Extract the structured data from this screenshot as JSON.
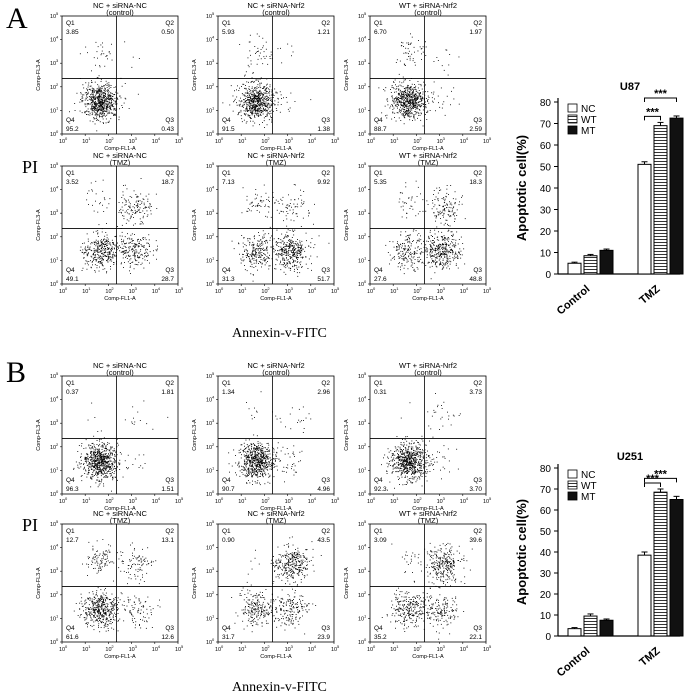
{
  "figure": {
    "panels": [
      {
        "letter": "A",
        "pi_label": "PI",
        "xcaption": "Annexin-v-FITC",
        "flow_plots": [
          {
            "title": "NC + siRNA-NC",
            "subtitle": "(control)",
            "q1": "3.85",
            "q2": "0.50",
            "q3": "0.43",
            "q4": "95.2",
            "pattern": "ctrl"
          },
          {
            "title": "NC + siRNA-Nrf2",
            "subtitle": "(control)",
            "q1": "5.93",
            "q2": "1.21",
            "q3": "1.38",
            "q4": "91.5",
            "pattern": "ctrl"
          },
          {
            "title": "WT + siRNA-Nrf2",
            "subtitle": "(control)",
            "q1": "6.70",
            "q2": "1.97",
            "q3": "2.59",
            "q4": "88.7",
            "pattern": "ctrl"
          },
          {
            "title": "NC + siRNA-NC",
            "subtitle": "(TMZ)",
            "q1": "3.52",
            "q2": "18.7",
            "q3": "28.7",
            "q4": "49.1",
            "pattern": "tmz"
          },
          {
            "title": "NC + siRNA-Nrf2",
            "subtitle": "(TMZ)",
            "q1": "7.13",
            "q2": "9.92",
            "q3": "51.7",
            "q4": "31.3",
            "pattern": "tmz"
          },
          {
            "title": "WT + siRNA-Nrf2",
            "subtitle": "(TMZ)",
            "q1": "5.35",
            "q2": "18.3",
            "q3": "48.8",
            "q4": "27.6",
            "pattern": "tmz"
          }
        ]
      },
      {
        "letter": "B",
        "pi_label": "PI",
        "xcaption": "Annexin-v-FITC",
        "flow_plots": [
          {
            "title": "NC + siRNA-NC",
            "subtitle": "(control)",
            "q1": "0.37",
            "q2": "1.81",
            "q3": "1.51",
            "q4": "96.3",
            "pattern": "ctrl"
          },
          {
            "title": "NC + siRNA-Nrf2",
            "subtitle": "(control)",
            "q1": "1.34",
            "q2": "2.96",
            "q3": "4.96",
            "q4": "90.7",
            "pattern": "ctrl"
          },
          {
            "title": "WT + siRNA-Nrf2",
            "subtitle": "(control)",
            "q1": "0.31",
            "q2": "3.73",
            "q3": "3.70",
            "q4": "92.3",
            "pattern": "ctrl"
          },
          {
            "title": "NC + siRNA-NC",
            "subtitle": "(TMZ)",
            "q1": "12.7",
            "q2": "13.1",
            "q3": "12.6",
            "q4": "61.6",
            "pattern": "tmz2"
          },
          {
            "title": "NC + siRNA-Nrf2",
            "subtitle": "(TMZ)",
            "q1": "0.90",
            "q2": "43.5",
            "q3": "23.9",
            "q4": "31.7",
            "pattern": "tmz2"
          },
          {
            "title": "WT + siRNA-Nrf2",
            "subtitle": "(TMZ)",
            "q1": "3.09",
            "q2": "39.6",
            "q3": "22.1",
            "q4": "35.2",
            "pattern": "tmz2"
          }
        ]
      }
    ],
    "flow_axis": {
      "ylabel": "Comp-FL3-A",
      "xlabel": "Comp-FL1-A",
      "ticks": [
        "10",
        "10",
        "10",
        "10",
        "10",
        "10"
      ],
      "tick_exps": [
        "0",
        "1",
        "2",
        "3",
        "4",
        "5"
      ]
    }
  },
  "chart_data": [
    {
      "type": "bar",
      "title": "U87",
      "ylabel": "Apoptotic cell(%)",
      "xlabel": "",
      "categories": [
        "Control",
        "TMZ"
      ],
      "ylim": [
        0,
        80
      ],
      "yticks": [
        "0",
        "10",
        "20",
        "30",
        "40",
        "50",
        "60",
        "70",
        "80"
      ],
      "series": [
        {
          "name": "NC",
          "values": [
            5,
            51
          ],
          "errors": [
            0.5,
            1.2
          ],
          "fill": "#ffffff"
        },
        {
          "name": "WT",
          "values": [
            8.5,
            69
          ],
          "errors": [
            0.6,
            1.5
          ],
          "fill": "hatch"
        },
        {
          "name": "MT",
          "values": [
            11,
            72.5
          ],
          "errors": [
            0.6,
            1.0
          ],
          "fill": "#111111"
        }
      ],
      "annotations": [
        {
          "text": "***",
          "between": [
            "NC",
            "WT"
          ],
          "category": "TMZ"
        },
        {
          "text": "***",
          "between": [
            "NC",
            "MT"
          ],
          "category": "TMZ"
        }
      ]
    },
    {
      "type": "bar",
      "title": "U251",
      "ylabel": "Apoptotic cell(%)",
      "xlabel": "",
      "categories": [
        "Control",
        "TMZ"
      ],
      "ylim": [
        0,
        80
      ],
      "yticks": [
        "0",
        "10",
        "20",
        "30",
        "40",
        "50",
        "60",
        "70",
        "80"
      ],
      "series": [
        {
          "name": "NC",
          "values": [
            3.5,
            38.5
          ],
          "errors": [
            0.5,
            1.5
          ],
          "fill": "#ffffff"
        },
        {
          "name": "WT",
          "values": [
            9.5,
            68.5
          ],
          "errors": [
            1.0,
            1.5
          ],
          "fill": "hatch"
        },
        {
          "name": "MT",
          "values": [
            7.5,
            65
          ],
          "errors": [
            0.6,
            1.5
          ],
          "fill": "#111111"
        }
      ],
      "annotations": [
        {
          "text": "***",
          "between": [
            "NC",
            "WT"
          ],
          "category": "TMZ"
        },
        {
          "text": "***",
          "between": [
            "NC",
            "MT"
          ],
          "category": "TMZ"
        }
      ]
    }
  ]
}
